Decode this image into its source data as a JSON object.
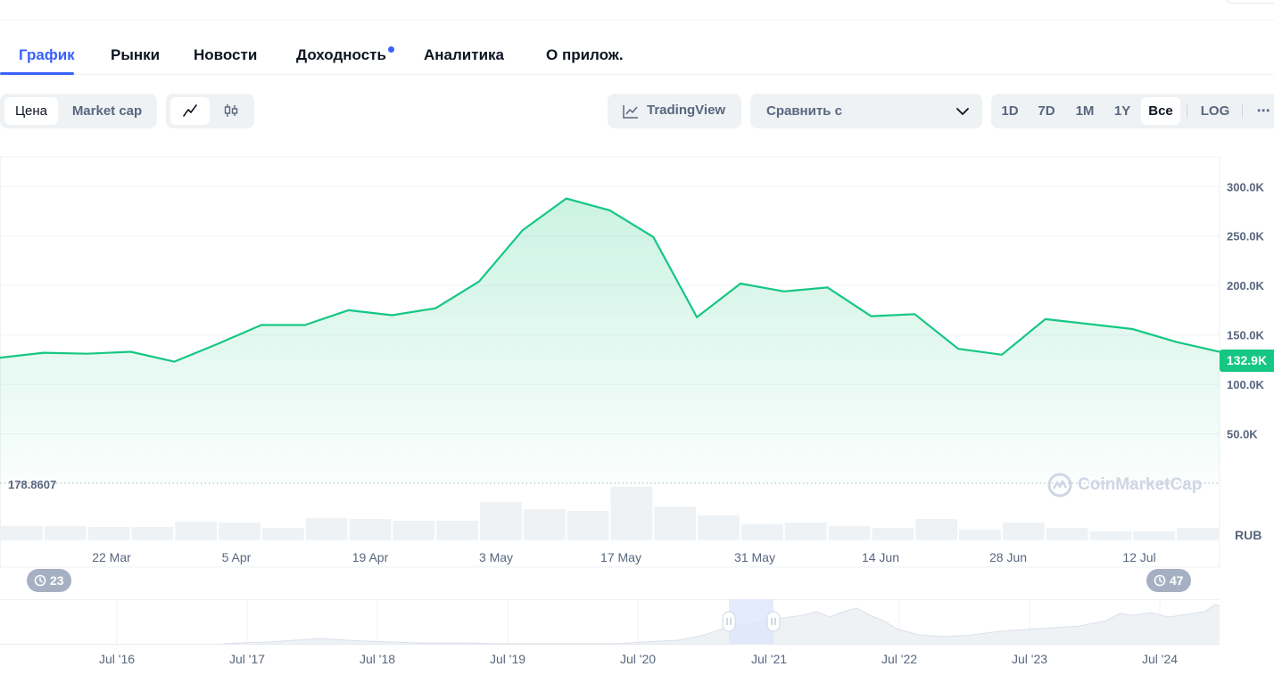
{
  "tabs": [
    "График",
    "Рынки",
    "Новости",
    "Доходность",
    "Аналитика",
    "О прилож."
  ],
  "toolbar": {
    "price_label": "Цена",
    "market_cap_label": "Market cap",
    "line_icon": "line-chart-icon",
    "candle_icon": "candlestick-icon",
    "tradingview_label": "TradingView",
    "compare_label": "Сравнить с",
    "ranges": [
      "1D",
      "7D",
      "1M",
      "1Y",
      "Все"
    ],
    "log_label": "LOG",
    "more_label": "⋯"
  },
  "chart": {
    "base_value_label": "178.8607",
    "current_price_label": "132.9K",
    "currency_label": "RUB",
    "watermark": "CoinMarketCap",
    "line_color": "#16c784",
    "history_left": "23",
    "history_right": "47"
  },
  "chart_data": {
    "type": "area",
    "title": "",
    "xlabel": "",
    "ylabel": "",
    "ylim": [
      0,
      330000
    ],
    "grid": true,
    "x_ticks": [
      "22 Mar",
      "5 Apr",
      "19 Apr",
      "3 May",
      "17 May",
      "31 May",
      "14 Jun",
      "28 Jun",
      "12 Jul"
    ],
    "y_ticks": [
      "50.0K",
      "100.0K",
      "150.0K",
      "200.0K",
      "250.0K",
      "300.0K"
    ],
    "y_tick_values": [
      50000,
      100000,
      150000,
      200000,
      250000,
      300000
    ],
    "series": [
      {
        "values": [
          127000,
          132000,
          131000,
          133000,
          123000,
          141000,
          160000,
          160000,
          175000,
          170000,
          177000,
          204000,
          256000,
          288000,
          276000,
          249000,
          168000,
          202000,
          194000,
          198000,
          169000,
          171000,
          136000,
          130000,
          166000,
          161000,
          156000,
          143000,
          132900
        ]
      }
    ],
    "volume": [
      16,
      16,
      15,
      15,
      21,
      20,
      14,
      25,
      24,
      22,
      22,
      43,
      35,
      33,
      60,
      38,
      28,
      18,
      20,
      16,
      14,
      24,
      12,
      20,
      14,
      10,
      10,
      14
    ],
    "navigator_ticks": [
      "Jul '16",
      "Jul '17",
      "Jul '18",
      "Jul '19",
      "Jul '20",
      "Jul '21",
      "Jul '22",
      "Jul '23",
      "Jul '24"
    ]
  }
}
